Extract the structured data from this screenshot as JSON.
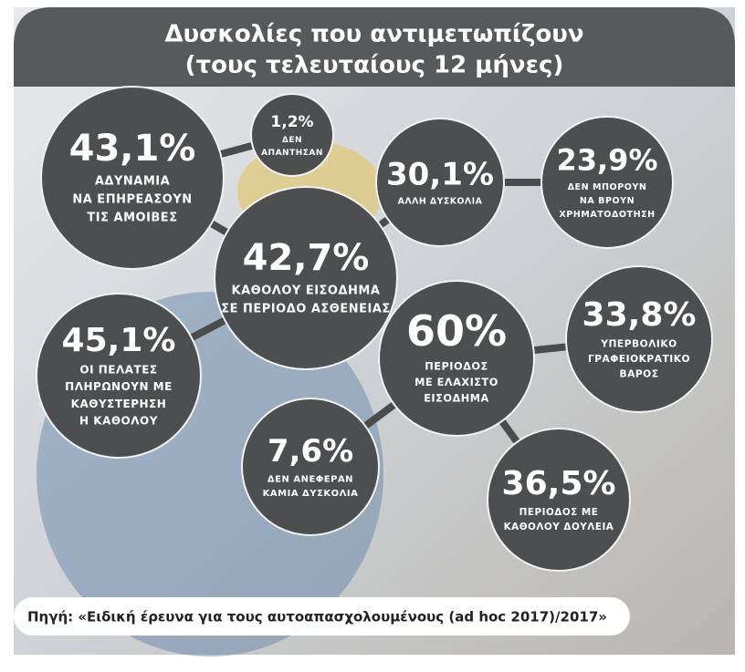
{
  "header": {
    "title": "Δυσκολίες που αντιμετωπίζουν",
    "subtitle": "(τους τελευταίους 12 μήνες)"
  },
  "nodes": [
    {
      "value": "43,1%",
      "label": [
        "ΑΔΥΝΑΜΙΑ",
        "ΝΑ ΕΠΗΡΕΑΣΟΥΝ",
        "ΤΙΣ ΑΜΟΙΒΕΣ"
      ]
    },
    {
      "value": "1,2%",
      "label": [
        "ΔΕΝ",
        "ΑΠΑΝΤΗΣΑΝ"
      ]
    },
    {
      "value": "30,1%",
      "label": [
        "ΑΛΛΗ ΔΥΣΚΟΛΙΑ"
      ]
    },
    {
      "value": "23,9%",
      "label": [
        "ΔΕΝ ΜΠΟΡΟΥΝ",
        "ΝΑ ΒΡΟΥΝ",
        "ΧΡΗΜΑΤΟΔΟΤΗΣΗ"
      ]
    },
    {
      "value": "42,7%",
      "label": [
        "ΚΑΘΟΛΟΥ ΕΙΣΟΔΗΜΑ",
        "ΣΕ ΠΕΡΙΟΔΟ ΑΣΘΕΝΕΙΑΣ"
      ]
    },
    {
      "value": "45,1%",
      "label": [
        "ΟΙ ΠΕΛΑΤΕΣ",
        "ΠΛΗΡΩΝΟΥΝ ΜΕ",
        "ΚΑΘΥΣΤΕΡΗΣΗ",
        "Η ΚΑΘΟΛΟΥ"
      ]
    },
    {
      "value": "60%",
      "label": [
        "ΠΕΡΙΟΔΟΣ",
        "ΜΕ ΕΛΑΧΙΣΤΟ",
        "ΕΙΣΟΔΗΜΑ"
      ]
    },
    {
      "value": "33,8%",
      "label": [
        "ΥΠΕΡΒΟΛΙΚΟ",
        "ΓΡΑΦΕΙΟΚΡΑΤΙΚΟ",
        "ΒΑΡΟΣ"
      ]
    },
    {
      "value": "7,6%",
      "label": [
        "ΔΕΝ ΑΝΕΦΕΡΑΝ",
        "ΚΑΜΙΑ ΔΥΣΚΟΛΙΑ"
      ]
    },
    {
      "value": "36,5%",
      "label": [
        "ΠΕΡΙΟΔΟΣ ΜΕ",
        "ΚΑΘΟΛΟΥ ΔΟΥΛΕΙΑ"
      ]
    }
  ],
  "footer": {
    "source": "Πηγή: «Ειδική έρευνα για τους αυτοαπασχολουμένους (ad hoc 2017)/2017»"
  }
}
